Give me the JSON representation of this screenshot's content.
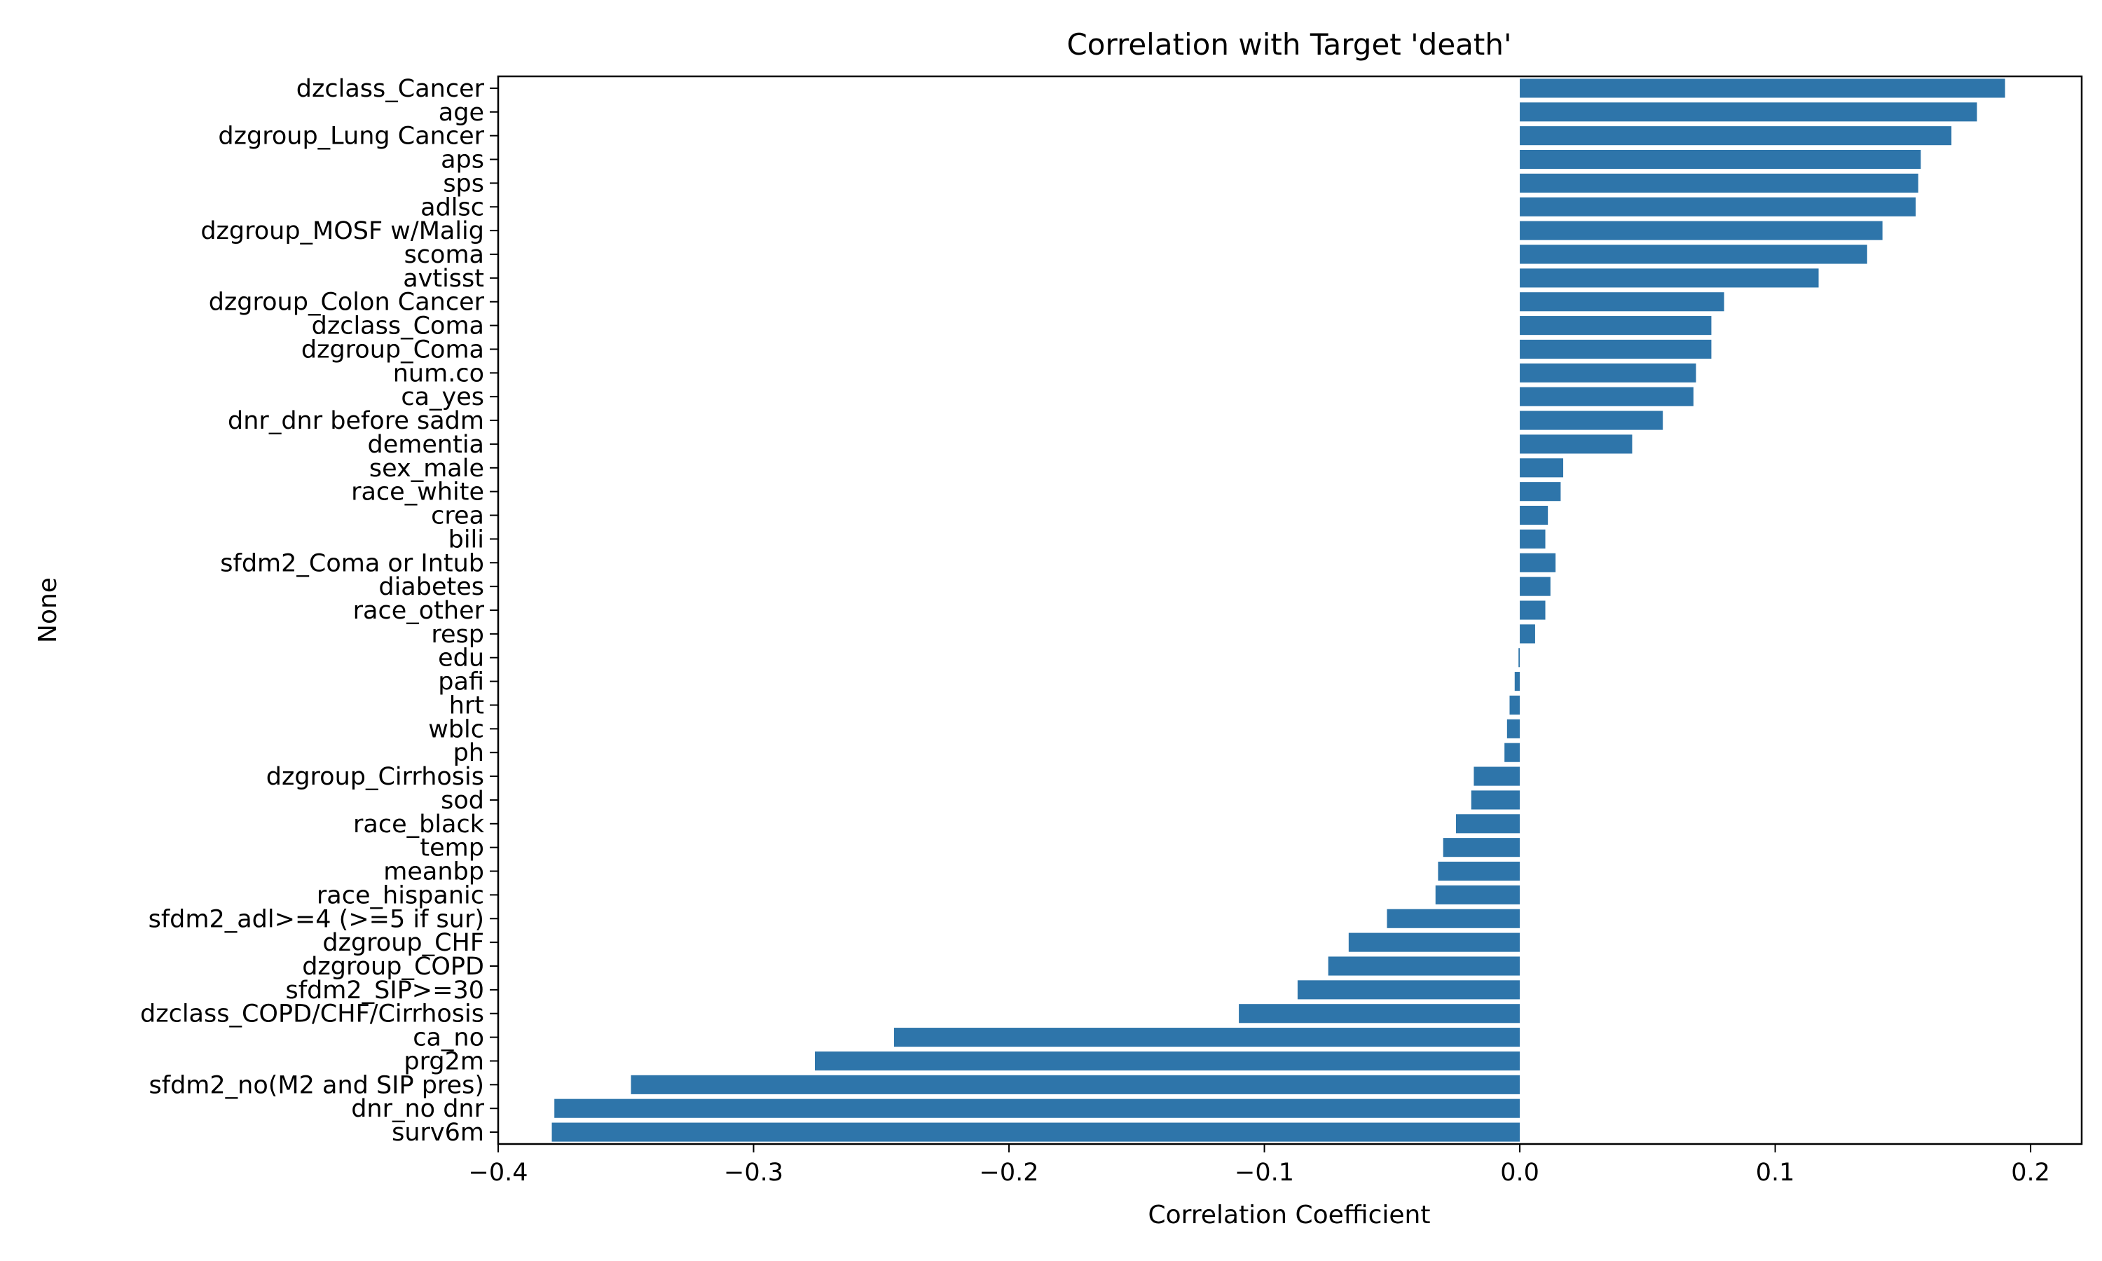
{
  "chart_data": {
    "type": "bar",
    "orientation": "horizontal",
    "title": "Correlation with Target 'death'",
    "xlabel": "Correlation Coefficient",
    "ylabel": "None",
    "xlim": [
      -0.4,
      0.22
    ],
    "xticks": [
      -0.4,
      -0.3,
      -0.2,
      -0.1,
      0.0,
      0.1,
      0.2
    ],
    "xtick_labels": [
      "−0.4",
      "−0.3",
      "−0.2",
      "−0.1",
      "0.0",
      "0.1",
      "0.2"
    ],
    "grid": false,
    "bar_color": "#2e75aa",
    "categories": [
      "dzclass_Cancer",
      "age",
      "dzgroup_Lung Cancer",
      "aps",
      "sps",
      "adlsc",
      "dzgroup_MOSF w/Malig",
      "scoma",
      "avtisst",
      "dzgroup_Colon Cancer",
      "dzclass_Coma",
      "dzgroup_Coma",
      "num.co",
      "ca_yes",
      "dnr_dnr before sadm",
      "dementia",
      "sex_male",
      "race_white",
      "crea",
      "bili",
      "sfdm2_Coma or Intub",
      "diabetes",
      "race_other",
      "resp",
      "edu",
      "pafi",
      "hrt",
      "wblc",
      "ph",
      "dzgroup_Cirrhosis",
      "sod",
      "race_black",
      "temp",
      "meanbp",
      "race_hispanic",
      "sfdm2_adl>=4 (>=5 if sur)",
      "dzgroup_CHF",
      "dzgroup_COPD",
      "sfdm2_SIP>=30",
      "dzclass_COPD/CHF/Cirrhosis",
      "ca_no",
      "prg2m",
      "sfdm2_no(M2 and SIP pres)",
      "dnr_no dnr",
      "surv6m"
    ],
    "values": [
      0.19,
      0.179,
      0.169,
      0.157,
      0.156,
      0.155,
      0.142,
      0.136,
      0.117,
      0.08,
      0.075,
      0.075,
      0.069,
      0.068,
      0.056,
      0.044,
      0.017,
      0.016,
      0.011,
      0.01,
      0.014,
      0.012,
      0.01,
      0.006,
      -0.0005,
      -0.002,
      -0.004,
      -0.005,
      -0.006,
      -0.018,
      -0.019,
      -0.025,
      -0.03,
      -0.032,
      -0.033,
      -0.052,
      -0.067,
      -0.075,
      -0.087,
      -0.11,
      -0.245,
      -0.276,
      -0.348,
      -0.378,
      -0.379
    ]
  }
}
